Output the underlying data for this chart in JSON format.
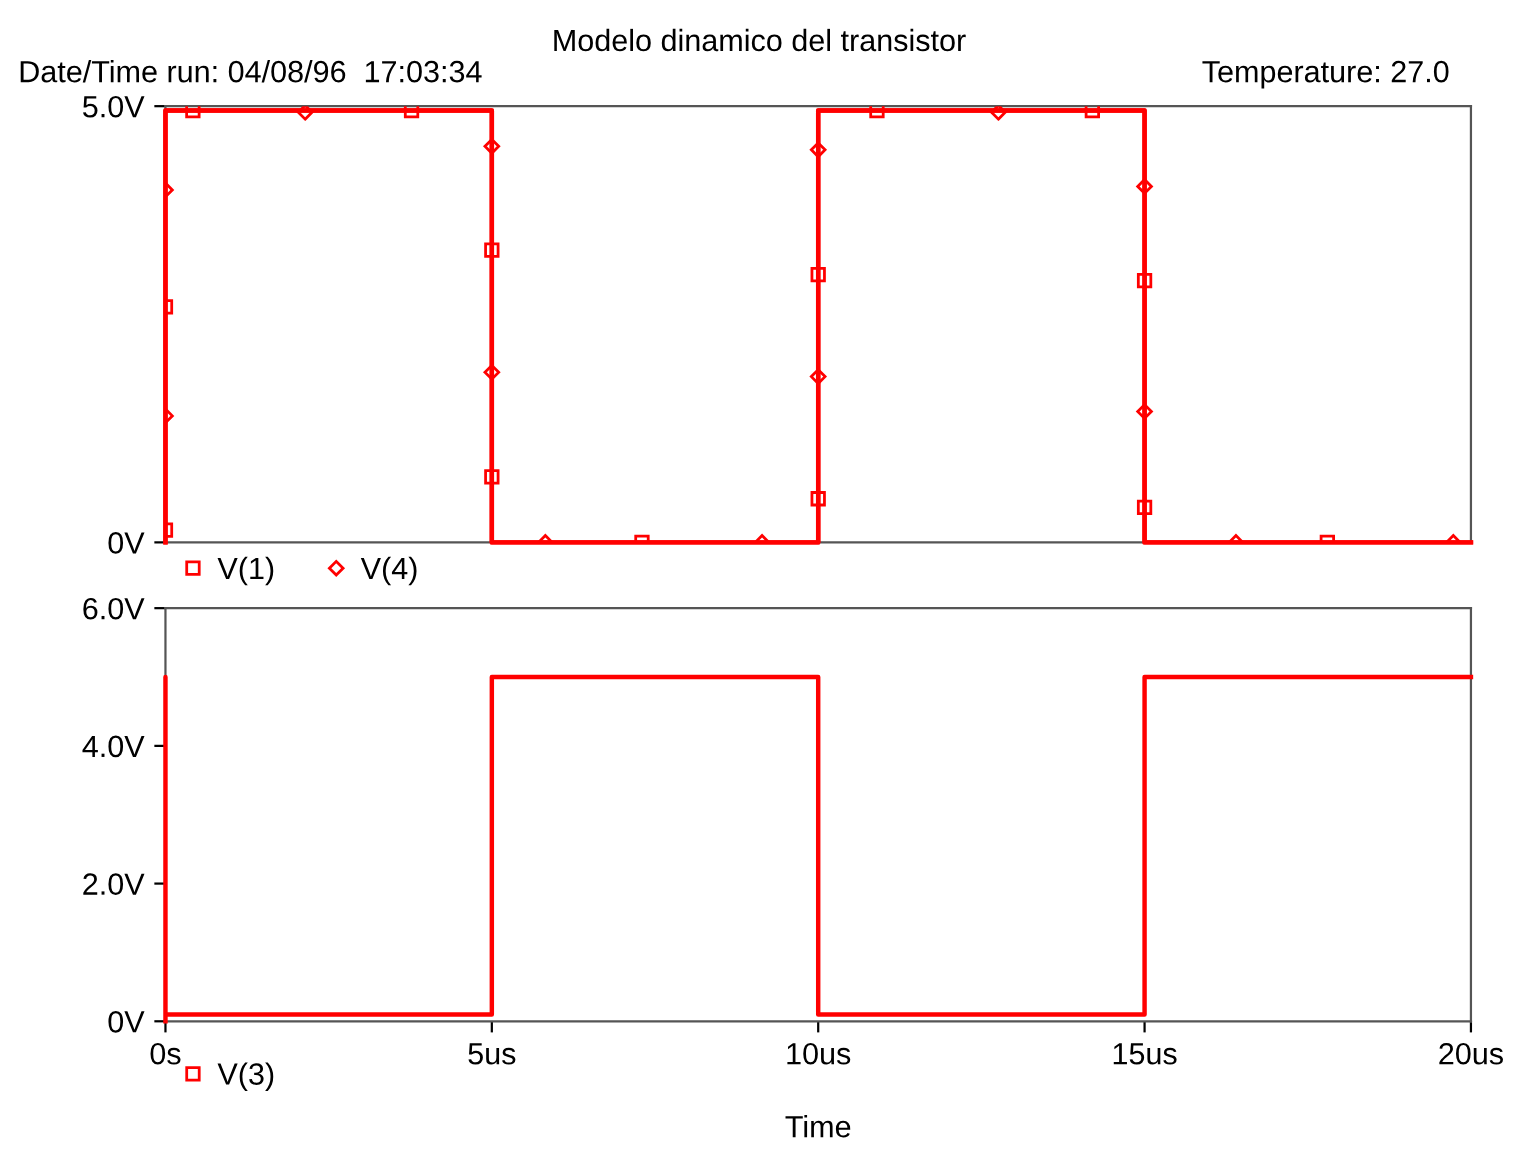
{
  "chart_data": [
    {
      "type": "line",
      "title": "Modelo dinamico del transistor",
      "annotations": [
        "Date/Time run: 04/08/96  17:03:34",
        "Temperature: 27.0"
      ],
      "xlim": [
        0,
        20
      ],
      "ylim": [
        0,
        5
      ],
      "yticks": [
        {
          "value": 0,
          "label": "0V"
        },
        {
          "value": 5,
          "label": "5.0V"
        }
      ],
      "tick_labels": "y",
      "grid": false,
      "legend": "bottom left",
      "series": [
        {
          "color": "#ff0000",
          "x": [
            0,
            0,
            5,
            5,
            10,
            10,
            15,
            15,
            20
          ],
          "values": [
            0,
            4.95,
            4.95,
            0,
            0,
            4.95,
            4.95,
            0,
            0
          ]
        },
        {
          "color": "#ff0000",
          "x": [
            0,
            0,
            5,
            5,
            10,
            10,
            15,
            15,
            20
          ],
          "values": [
            0,
            4.95,
            4.95,
            0,
            0,
            4.95,
            4.95,
            0,
            0
          ]
        },
        {
          "type": "scatter",
          "name": "V(1)",
          "color": "#ff0000",
          "marker": "square",
          "x": [
            0,
            0,
            0.42,
            3.77,
            5,
            5,
            7.3,
            10,
            10,
            10.9,
            14.2,
            15,
            15,
            17.8
          ],
          "values": [
            0.14,
            2.7,
            4.95,
            4.95,
            3.35,
            0.75,
            0,
            0.5,
            3.07,
            4.95,
            4.95,
            3.0,
            0.4,
            0
          ]
        },
        {
          "type": "scatter",
          "name": "V(4)",
          "color": "#ff0000",
          "marker": "diamond",
          "x": [
            0,
            0,
            2.14,
            5,
            5,
            5.82,
            9.14,
            10,
            10,
            12.76,
            15,
            15,
            16.4,
            19.73
          ],
          "values": [
            4.04,
            1.45,
            4.93,
            4.54,
            1.95,
            0,
            0,
            1.9,
            4.5,
            4.93,
            4.08,
            1.5,
            0,
            0
          ]
        }
      ]
    },
    {
      "type": "line",
      "xlabel": "Time",
      "xlim": [
        0,
        20
      ],
      "xticks": [
        {
          "value": 0,
          "label": "0s"
        },
        {
          "value": 5,
          "label": "5us"
        },
        {
          "value": 10,
          "label": "10us"
        },
        {
          "value": 15,
          "label": "15us"
        },
        {
          "value": 20,
          "label": "20us"
        }
      ],
      "ylim": [
        0,
        6
      ],
      "yticks": [
        {
          "value": 0,
          "label": "0V"
        },
        {
          "value": 2,
          "label": "2.0V"
        },
        {
          "value": 4,
          "label": "4.0V"
        },
        {
          "value": 6,
          "label": "6.0V"
        }
      ],
      "grid": false,
      "legend": "bottom left",
      "series": [
        {
          "name": "V(3)",
          "color": "#ff0000",
          "x": [
            0,
            0,
            0,
            5,
            5,
            10,
            10,
            15,
            15,
            20
          ],
          "values": [
            0,
            5,
            0.1,
            0.1,
            5,
            5,
            0.1,
            0.1,
            5,
            5
          ]
        }
      ]
    }
  ]
}
